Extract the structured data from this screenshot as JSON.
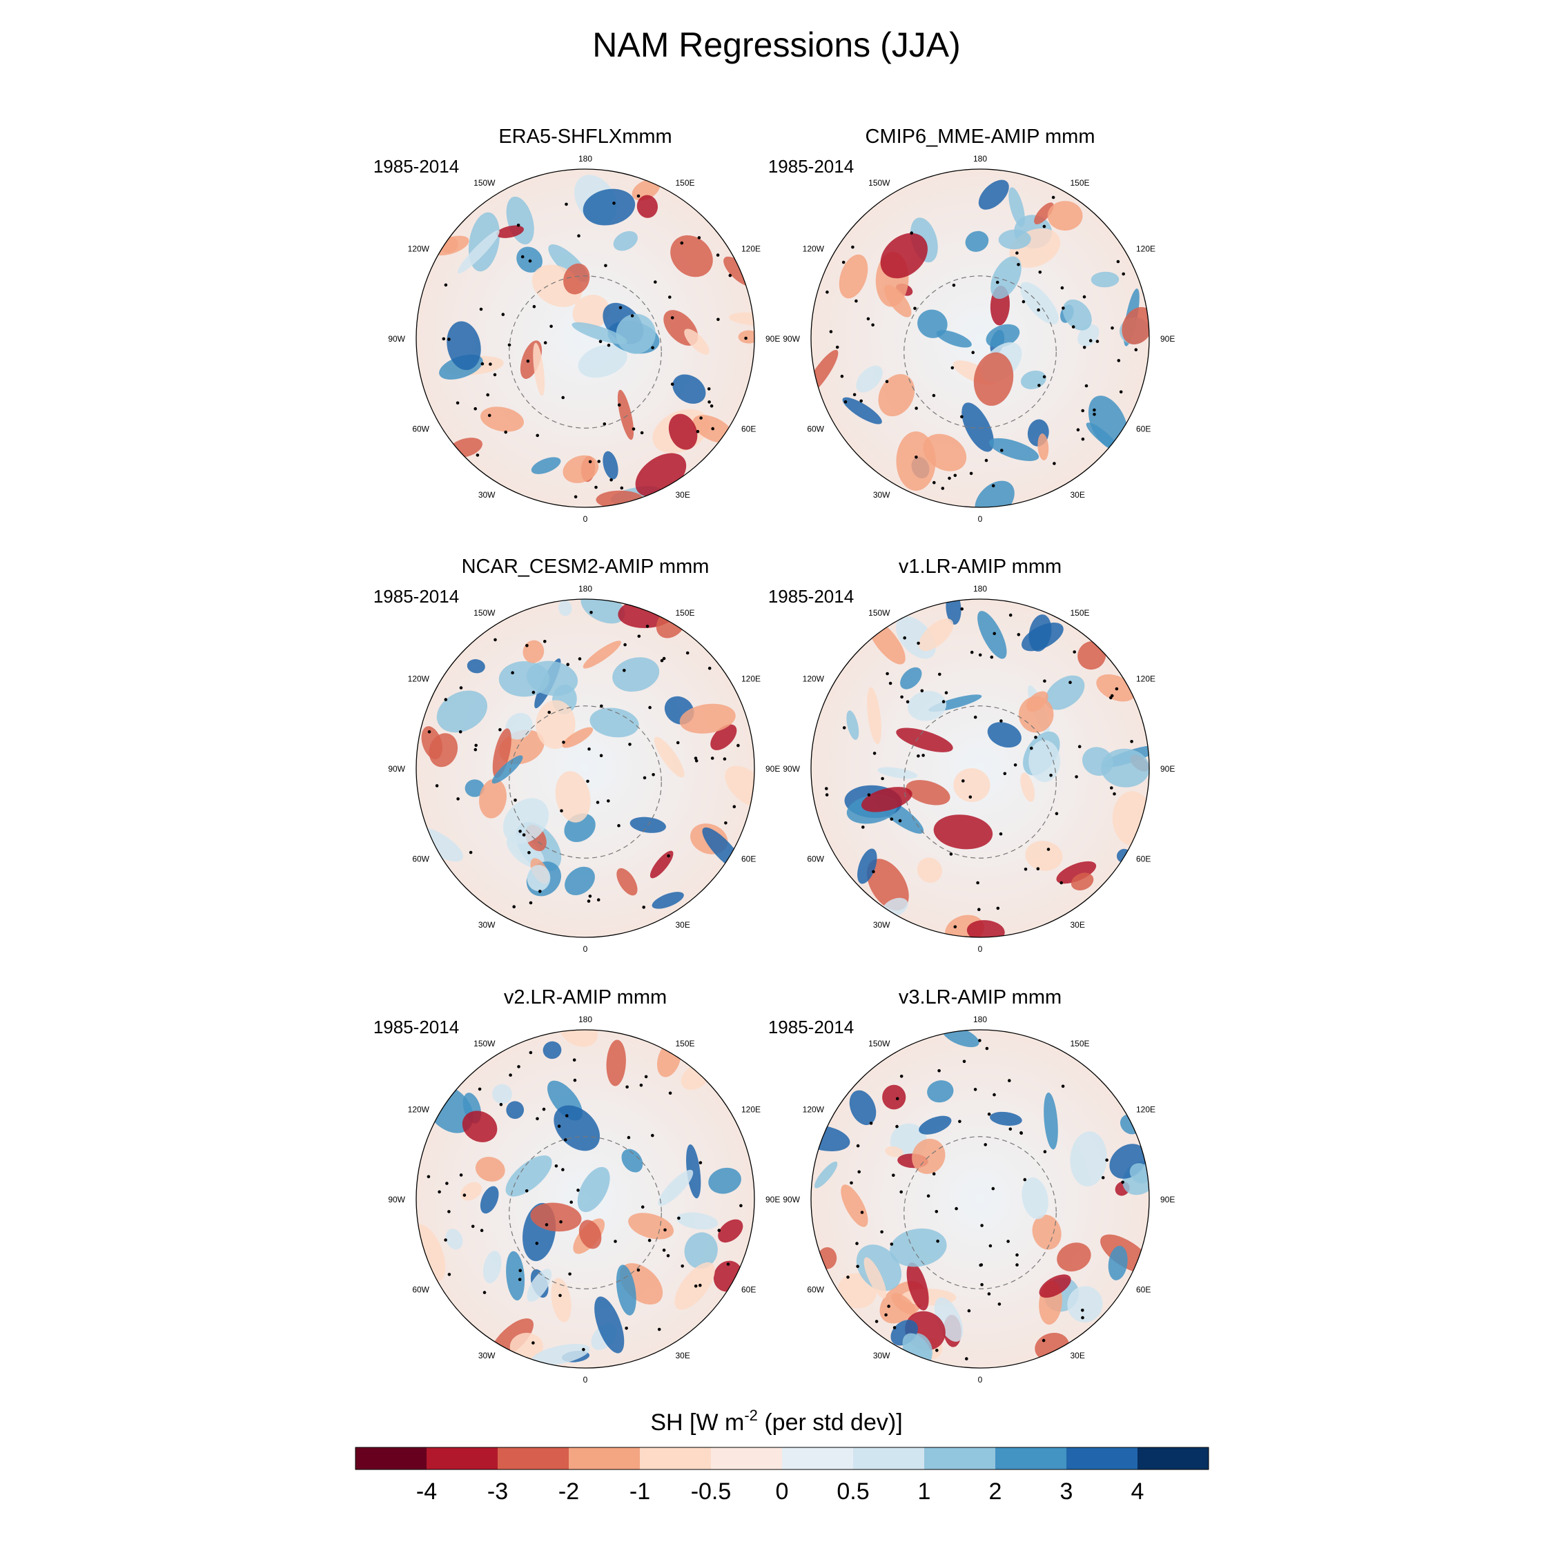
{
  "chart_data": {
    "type": "polar-map-panels",
    "title": "NAM Regressions (JJA)",
    "period": "1985-2014",
    "lon_labels": [
      "180",
      "150E",
      "120E",
      "90E",
      "60E",
      "30E",
      "0",
      "30W",
      "60W",
      "90W",
      "120W",
      "150W"
    ],
    "panels": [
      {
        "title": "ERA5-SHFLXmmm",
        "period": "1985-2014"
      },
      {
        "title": "CMIP6_MME-AMIP  mmm",
        "period": "1985-2014"
      },
      {
        "title": "NCAR_CESM2-AMIP  mmm",
        "period": "1985-2014"
      },
      {
        "title": "v1.LR-AMIP  mmm",
        "period": "1985-2014"
      },
      {
        "title": "v2.LR-AMIP  mmm",
        "period": "1985-2014"
      },
      {
        "title": "v3.LR-AMIP  mmm",
        "period": "1985-2014"
      }
    ],
    "colorbar": {
      "label": "SH [W m",
      "label_superscript": "-2",
      "label_suffix": " (per std dev)]",
      "levels": [
        "-4",
        "-3",
        "-2",
        "-1",
        "-0.5",
        "0",
        "0.5",
        "1",
        "2",
        "3",
        "4"
      ],
      "colors": [
        "#67001f",
        "#b2182b",
        "#d6604d",
        "#f4a582",
        "#fddbc7",
        "#fbe9e1",
        "#e5eef5",
        "#d1e5f0",
        "#92c5de",
        "#4393c3",
        "#2166ac",
        "#053061"
      ]
    }
  }
}
